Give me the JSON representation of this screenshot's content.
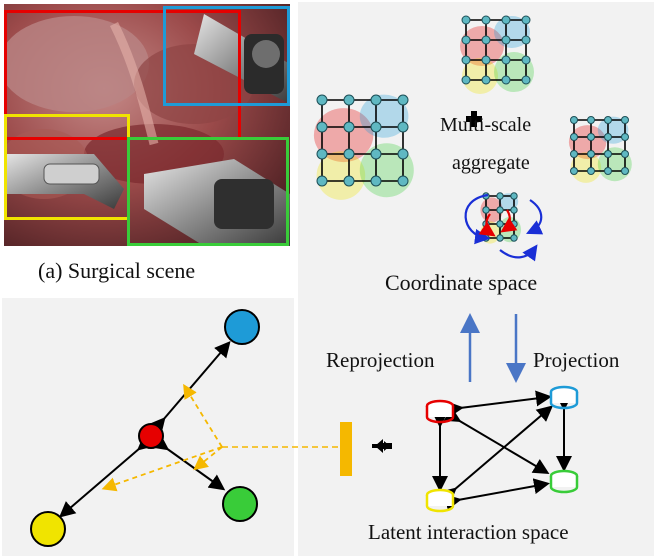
{
  "caption_scene": "(a) Surgical scene",
  "coord_space_label": "Coordinate space",
  "multi_scale_label": "Multi-scale",
  "aggregate_label": "aggregate",
  "reprojection_label": "Reprojection",
  "projection_label": "Projection",
  "latent_space_label": "Latent interaction space",
  "colors": {
    "red": "#e60000",
    "blue": "#1e9bd7",
    "yellow": "#f0e400",
    "green": "#39cc39",
    "orange": "#f5b800",
    "arrow_blue": "#4a76c6",
    "node_teal": "#5fb8c2"
  }
}
